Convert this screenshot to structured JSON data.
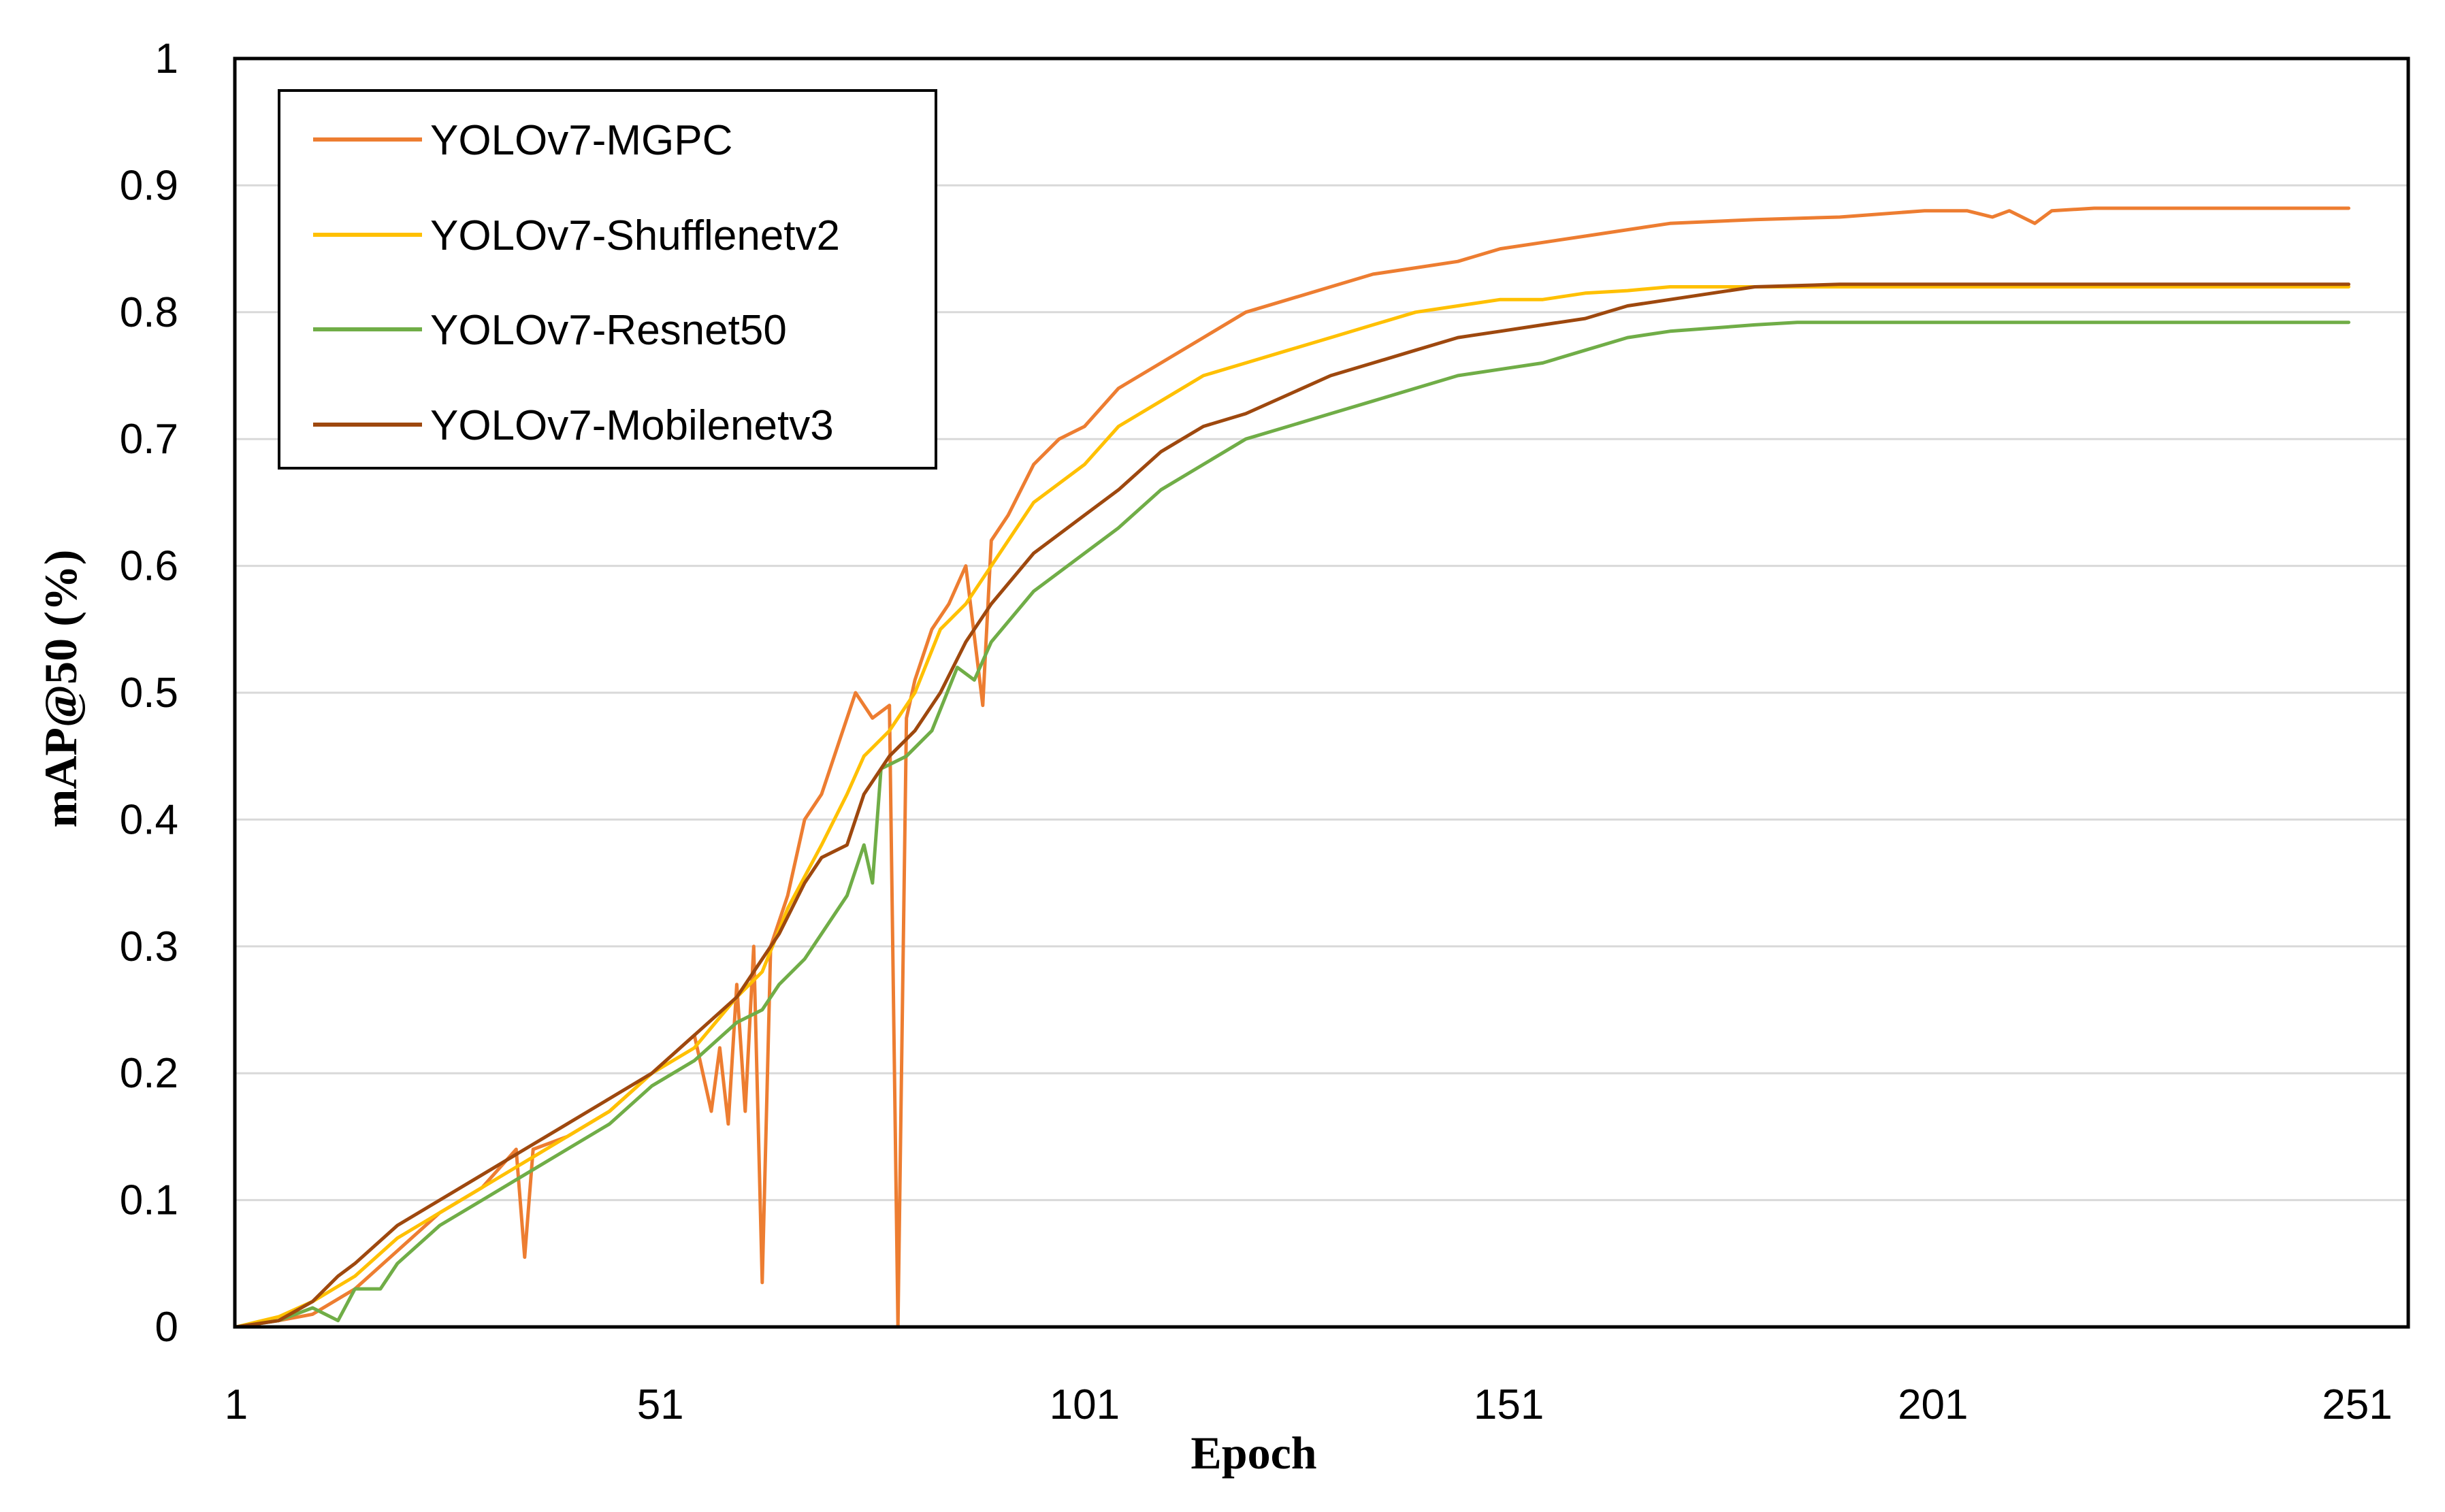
{
  "chart_data": {
    "type": "line",
    "title": "",
    "xlabel": "Epoch",
    "ylabel": "mAP@50 (%)",
    "xlim": [
      1,
      261
    ],
    "ylim": [
      0,
      1
    ],
    "x_ticks": [
      1,
      51,
      101,
      151,
      201,
      251
    ],
    "x_tick_labels": [
      "1",
      "51",
      "101",
      "151",
      "201",
      "251"
    ],
    "y_ticks": [
      0,
      0.1,
      0.2,
      0.3,
      0.4,
      0.5,
      0.6,
      0.7,
      0.8,
      0.9,
      1
    ],
    "y_tick_labels": [
      "0",
      "0.1",
      "0.2",
      "0.3",
      "0.4",
      "0.5",
      "0.6",
      "0.7",
      "0.8",
      "0.9",
      "1"
    ],
    "grid": "horizontal",
    "legend_position": "top-left",
    "series": [
      {
        "name": "YOLOv7-MGPC",
        "color": "#ed7d31",
        "points": [
          [
            1,
            0
          ],
          [
            6,
            0.005
          ],
          [
            10,
            0.01
          ],
          [
            15,
            0.03
          ],
          [
            20,
            0.06
          ],
          [
            25,
            0.09
          ],
          [
            30,
            0.11
          ],
          [
            34,
            0.14
          ],
          [
            35,
            0.055
          ],
          [
            36,
            0.14
          ],
          [
            40,
            0.15
          ],
          [
            45,
            0.17
          ],
          [
            50,
            0.2
          ],
          [
            55,
            0.23
          ],
          [
            57,
            0.17
          ],
          [
            58,
            0.22
          ],
          [
            59,
            0.16
          ],
          [
            60,
            0.27
          ],
          [
            61,
            0.17
          ],
          [
            62,
            0.3
          ],
          [
            63,
            0.035
          ],
          [
            64,
            0.3
          ],
          [
            66,
            0.34
          ],
          [
            68,
            0.4
          ],
          [
            70,
            0.42
          ],
          [
            72,
            0.46
          ],
          [
            74,
            0.5
          ],
          [
            76,
            0.48
          ],
          [
            78,
            0.49
          ],
          [
            79,
            0
          ],
          [
            80,
            0.48
          ],
          [
            81,
            0.51
          ],
          [
            83,
            0.55
          ],
          [
            85,
            0.57
          ],
          [
            87,
            0.6
          ],
          [
            89,
            0.49
          ],
          [
            90,
            0.62
          ],
          [
            92,
            0.64
          ],
          [
            95,
            0.68
          ],
          [
            98,
            0.7
          ],
          [
            101,
            0.71
          ],
          [
            105,
            0.74
          ],
          [
            110,
            0.76
          ],
          [
            115,
            0.78
          ],
          [
            120,
            0.8
          ],
          [
            125,
            0.81
          ],
          [
            130,
            0.82
          ],
          [
            135,
            0.83
          ],
          [
            140,
            0.835
          ],
          [
            145,
            0.84
          ],
          [
            150,
            0.85
          ],
          [
            155,
            0.855
          ],
          [
            160,
            0.86
          ],
          [
            165,
            0.865
          ],
          [
            170,
            0.87
          ],
          [
            180,
            0.873
          ],
          [
            190,
            0.875
          ],
          [
            200,
            0.88
          ],
          [
            205,
            0.88
          ],
          [
            208,
            0.875
          ],
          [
            210,
            0.88
          ],
          [
            213,
            0.87
          ],
          [
            215,
            0.88
          ],
          [
            220,
            0.882
          ],
          [
            230,
            0.882
          ],
          [
            240,
            0.882
          ],
          [
            250,
            0.882
          ]
        ]
      },
      {
        "name": "YOLOv7-Shufflenetv2",
        "color": "#ffc000",
        "points": [
          [
            1,
            0
          ],
          [
            6,
            0.008
          ],
          [
            10,
            0.02
          ],
          [
            15,
            0.04
          ],
          [
            20,
            0.07
          ],
          [
            25,
            0.09
          ],
          [
            30,
            0.11
          ],
          [
            35,
            0.13
          ],
          [
            40,
            0.15
          ],
          [
            45,
            0.17
          ],
          [
            50,
            0.2
          ],
          [
            55,
            0.22
          ],
          [
            60,
            0.26
          ],
          [
            63,
            0.28
          ],
          [
            66,
            0.33
          ],
          [
            70,
            0.38
          ],
          [
            73,
            0.42
          ],
          [
            75,
            0.45
          ],
          [
            78,
            0.47
          ],
          [
            81,
            0.5
          ],
          [
            84,
            0.55
          ],
          [
            87,
            0.57
          ],
          [
            90,
            0.6
          ],
          [
            95,
            0.65
          ],
          [
            101,
            0.68
          ],
          [
            105,
            0.71
          ],
          [
            110,
            0.73
          ],
          [
            115,
            0.75
          ],
          [
            120,
            0.76
          ],
          [
            125,
            0.77
          ],
          [
            130,
            0.78
          ],
          [
            135,
            0.79
          ],
          [
            140,
            0.8
          ],
          [
            145,
            0.805
          ],
          [
            150,
            0.81
          ],
          [
            155,
            0.81
          ],
          [
            160,
            0.815
          ],
          [
            165,
            0.817
          ],
          [
            170,
            0.82
          ],
          [
            180,
            0.82
          ],
          [
            190,
            0.82
          ],
          [
            200,
            0.82
          ],
          [
            210,
            0.82
          ],
          [
            220,
            0.82
          ],
          [
            230,
            0.82
          ],
          [
            240,
            0.82
          ],
          [
            250,
            0.82
          ]
        ]
      },
      {
        "name": "YOLOv7-Resnet50",
        "color": "#70ad47",
        "points": [
          [
            1,
            0
          ],
          [
            6,
            0.005
          ],
          [
            10,
            0.015
          ],
          [
            13,
            0.005
          ],
          [
            15,
            0.03
          ],
          [
            18,
            0.03
          ],
          [
            20,
            0.05
          ],
          [
            25,
            0.08
          ],
          [
            30,
            0.1
          ],
          [
            35,
            0.12
          ],
          [
            40,
            0.14
          ],
          [
            45,
            0.16
          ],
          [
            50,
            0.19
          ],
          [
            55,
            0.21
          ],
          [
            60,
            0.24
          ],
          [
            63,
            0.25
          ],
          [
            65,
            0.27
          ],
          [
            68,
            0.29
          ],
          [
            70,
            0.31
          ],
          [
            73,
            0.34
          ],
          [
            75,
            0.38
          ],
          [
            76,
            0.35
          ],
          [
            77,
            0.44
          ],
          [
            80,
            0.45
          ],
          [
            83,
            0.47
          ],
          [
            86,
            0.52
          ],
          [
            88,
            0.51
          ],
          [
            90,
            0.54
          ],
          [
            95,
            0.58
          ],
          [
            101,
            0.61
          ],
          [
            105,
            0.63
          ],
          [
            110,
            0.66
          ],
          [
            115,
            0.68
          ],
          [
            120,
            0.7
          ],
          [
            125,
            0.71
          ],
          [
            130,
            0.72
          ],
          [
            135,
            0.73
          ],
          [
            140,
            0.74
          ],
          [
            145,
            0.75
          ],
          [
            150,
            0.755
          ],
          [
            155,
            0.76
          ],
          [
            160,
            0.77
          ],
          [
            165,
            0.78
          ],
          [
            170,
            0.785
          ],
          [
            180,
            0.79
          ],
          [
            185,
            0.792
          ],
          [
            190,
            0.792
          ],
          [
            200,
            0.792
          ],
          [
            210,
            0.792
          ],
          [
            220,
            0.792
          ],
          [
            230,
            0.792
          ],
          [
            240,
            0.792
          ],
          [
            250,
            0.792
          ]
        ]
      },
      {
        "name": "YOLOv7-Mobilenetv3",
        "color": "#9e480e",
        "points": [
          [
            1,
            0
          ],
          [
            6,
            0.005
          ],
          [
            10,
            0.02
          ],
          [
            13,
            0.04
          ],
          [
            15,
            0.05
          ],
          [
            20,
            0.08
          ],
          [
            25,
            0.1
          ],
          [
            30,
            0.12
          ],
          [
            35,
            0.14
          ],
          [
            40,
            0.16
          ],
          [
            45,
            0.18
          ],
          [
            50,
            0.2
          ],
          [
            55,
            0.23
          ],
          [
            60,
            0.26
          ],
          [
            63,
            0.29
          ],
          [
            65,
            0.31
          ],
          [
            68,
            0.35
          ],
          [
            70,
            0.37
          ],
          [
            73,
            0.38
          ],
          [
            75,
            0.42
          ],
          [
            78,
            0.45
          ],
          [
            81,
            0.47
          ],
          [
            84,
            0.5
          ],
          [
            87,
            0.54
          ],
          [
            90,
            0.57
          ],
          [
            95,
            0.61
          ],
          [
            101,
            0.64
          ],
          [
            105,
            0.66
          ],
          [
            110,
            0.69
          ],
          [
            115,
            0.71
          ],
          [
            120,
            0.72
          ],
          [
            125,
            0.735
          ],
          [
            130,
            0.75
          ],
          [
            135,
            0.76
          ],
          [
            140,
            0.77
          ],
          [
            145,
            0.78
          ],
          [
            150,
            0.785
          ],
          [
            155,
            0.79
          ],
          [
            160,
            0.795
          ],
          [
            165,
            0.805
          ],
          [
            170,
            0.81
          ],
          [
            175,
            0.815
          ],
          [
            180,
            0.82
          ],
          [
            190,
            0.822
          ],
          [
            200,
            0.822
          ],
          [
            210,
            0.822
          ],
          [
            220,
            0.822
          ],
          [
            230,
            0.822
          ],
          [
            240,
            0.822
          ],
          [
            250,
            0.822
          ]
        ]
      }
    ]
  }
}
